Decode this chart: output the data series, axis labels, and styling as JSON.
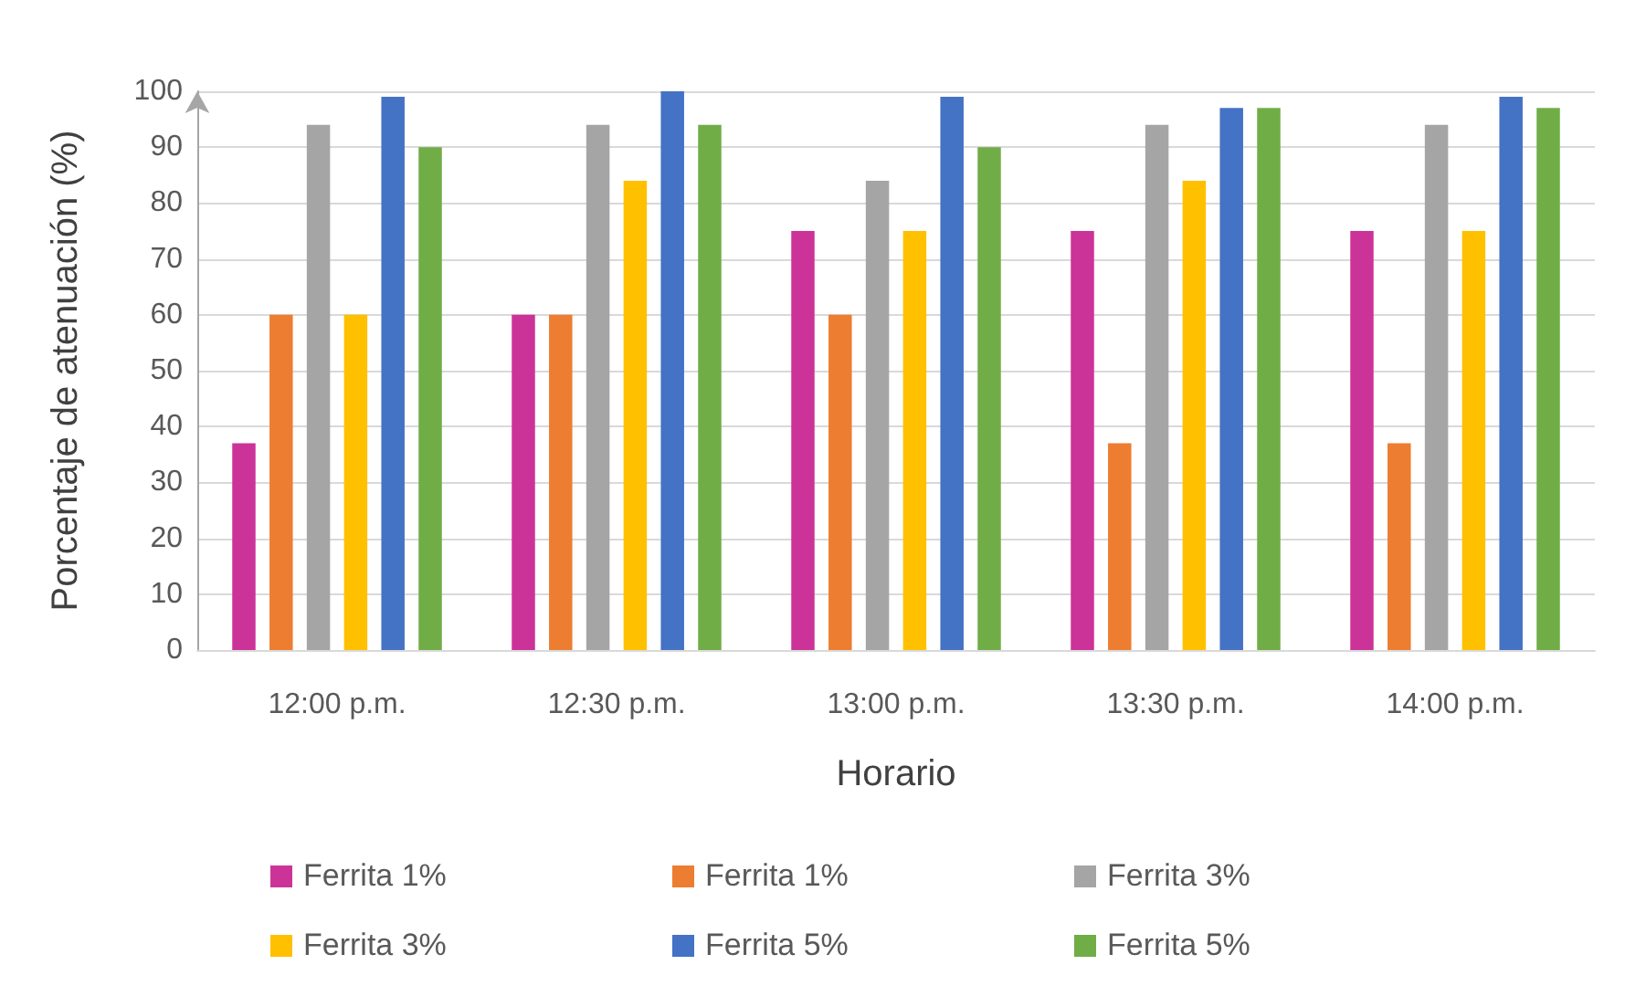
{
  "chart_data": {
    "type": "bar",
    "xlabel": "Horario",
    "ylabel": "Porcentaje de atenuación (%)",
    "categories": [
      "12:00 p.m.",
      "12:30 p.m.",
      "13:00 p.m.",
      "13:30 p.m.",
      "14:00 p.m."
    ],
    "series": [
      {
        "name": "Ferrita 1%",
        "color": "#cc3399",
        "values": [
          37,
          60,
          75,
          75,
          75
        ]
      },
      {
        "name": "Ferrita 1%",
        "color": "#ed7d31",
        "values": [
          60,
          60,
          60,
          37,
          37
        ]
      },
      {
        "name": "Ferrita 3%",
        "color": "#a5a5a5",
        "values": [
          94,
          94,
          84,
          94,
          94
        ]
      },
      {
        "name": "Ferrita 3%",
        "color": "#ffc000",
        "values": [
          60,
          84,
          75,
          84,
          75
        ]
      },
      {
        "name": "Ferrita 5%",
        "color": "#4472c4",
        "values": [
          99,
          100,
          99,
          97,
          99
        ]
      },
      {
        "name": "Ferrita 5%",
        "color": "#70ad47",
        "values": [
          90,
          94,
          90,
          97,
          97
        ]
      }
    ],
    "ylim": [
      0,
      100
    ],
    "yticks": [
      0,
      10,
      20,
      30,
      40,
      50,
      60,
      70,
      80,
      90,
      100
    ],
    "grid": "y",
    "legend": "bottom"
  }
}
